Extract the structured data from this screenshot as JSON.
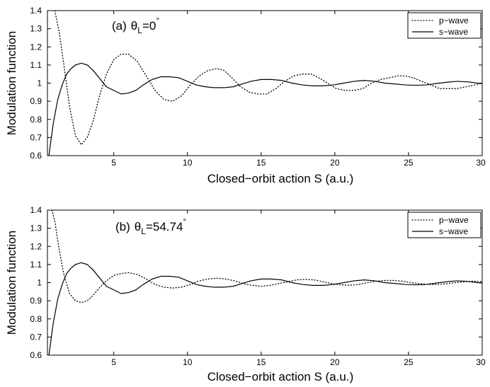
{
  "chart_data": [
    {
      "type": "line",
      "panel_label": {
        "prefix": "(a)",
        "symbol": "θ",
        "subscript": "L",
        "value": "=0",
        "superscript": "°"
      },
      "xlabel": "Closed−orbit action S (a.u.)",
      "ylabel": "Modulation function",
      "xlim": [
        0.5,
        30
      ],
      "ylim": [
        0.6,
        1.4
      ],
      "xticks": [
        5,
        10,
        15,
        20,
        25,
        30
      ],
      "xtick_labels": [
        "5",
        "10",
        "15",
        "20",
        "25",
        "30"
      ],
      "yticks": [
        0.6,
        0.7,
        0.8,
        0.9,
        1.0,
        1.1,
        1.2,
        1.3,
        1.4
      ],
      "ytick_labels": [
        "0.6",
        "0.7",
        "0.8",
        "0.9",
        "1",
        "1.1",
        "1.2",
        "1.3",
        "1.4"
      ],
      "legend_position": "top-right",
      "grid": false,
      "series": [
        {
          "name": "p−wave",
          "style": "dotted",
          "color": "#000000",
          "x": [
            1.0,
            1.3,
            1.6,
            2.0,
            2.4,
            2.8,
            3.2,
            3.6,
            4.0,
            4.5,
            5.0,
            5.5,
            6.0,
            6.6,
            7.2,
            7.8,
            8.4,
            9.0,
            9.6,
            10.2,
            10.8,
            11.4,
            12.0,
            12.5,
            13.0,
            13.6,
            14.2,
            14.8,
            15.4,
            16.0,
            16.6,
            17.2,
            17.8,
            18.4,
            18.9,
            19.5,
            20.1,
            20.7,
            21.3,
            21.9,
            22.5,
            23.1,
            23.7,
            24.3,
            24.8,
            25.3,
            25.9,
            26.5,
            27.1,
            27.7,
            28.3,
            28.9,
            29.5,
            30.0
          ],
          "y": [
            1.4,
            1.28,
            1.11,
            0.87,
            0.71,
            0.66,
            0.7,
            0.79,
            0.92,
            1.05,
            1.13,
            1.16,
            1.16,
            1.12,
            1.04,
            0.96,
            0.91,
            0.9,
            0.93,
            0.99,
            1.04,
            1.07,
            1.08,
            1.07,
            1.03,
            0.98,
            0.95,
            0.94,
            0.94,
            0.97,
            1.01,
            1.04,
            1.05,
            1.05,
            1.03,
            1.0,
            0.97,
            0.96,
            0.96,
            0.97,
            1.0,
            1.02,
            1.03,
            1.04,
            1.04,
            1.03,
            1.01,
            0.99,
            0.97,
            0.97,
            0.97,
            0.98,
            0.99,
            1.0
          ]
        },
        {
          "name": "s−wave",
          "style": "solid",
          "color": "#000000",
          "x": [
            0.6,
            0.9,
            1.2,
            1.5,
            1.8,
            2.1,
            2.4,
            2.8,
            3.2,
            3.6,
            4.0,
            4.5,
            5.0,
            5.5,
            6.0,
            6.5,
            7.0,
            7.6,
            8.2,
            8.8,
            9.4,
            10.0,
            10.6,
            11.2,
            11.8,
            12.5,
            13.1,
            13.7,
            14.3,
            15.0,
            15.7,
            16.4,
            17.1,
            17.8,
            18.5,
            19.2,
            19.9,
            20.6,
            21.3,
            22.0,
            22.7,
            23.4,
            24.1,
            24.8,
            25.5,
            26.2,
            26.9,
            27.6,
            28.3,
            29.0,
            29.7,
            30.0
          ],
          "y": [
            0.6,
            0.78,
            0.91,
            0.99,
            1.05,
            1.08,
            1.1,
            1.11,
            1.1,
            1.07,
            1.03,
            0.98,
            0.96,
            0.94,
            0.945,
            0.96,
            0.99,
            1.02,
            1.035,
            1.035,
            1.03,
            1.01,
            0.99,
            0.98,
            0.975,
            0.975,
            0.98,
            0.995,
            1.01,
            1.02,
            1.02,
            1.015,
            1.0,
            0.99,
            0.985,
            0.985,
            0.99,
            1.0,
            1.01,
            1.015,
            1.01,
            1.0,
            0.995,
            0.99,
            0.988,
            0.99,
            0.998,
            1.005,
            1.01,
            1.007,
            1.0,
            0.998
          ]
        }
      ]
    },
    {
      "type": "line",
      "panel_label": {
        "prefix": "(b)",
        "symbol": "θ",
        "subscript": "L",
        "value": "=54.74",
        "superscript": "°"
      },
      "xlabel": "Closed−orbit action S (a.u.)",
      "ylabel": "Modulation function",
      "xlim": [
        0.5,
        30
      ],
      "ylim": [
        0.6,
        1.4
      ],
      "xticks": [
        5,
        10,
        15,
        20,
        25,
        30
      ],
      "xtick_labels": [
        "5",
        "10",
        "15",
        "20",
        "25",
        "30"
      ],
      "yticks": [
        0.6,
        0.7,
        0.8,
        0.9,
        1.0,
        1.1,
        1.2,
        1.3,
        1.4
      ],
      "ytick_labels": [
        "0.6",
        "0.7",
        "0.8",
        "0.9",
        "1",
        "1.1",
        "1.2",
        "1.3",
        "1.4"
      ],
      "legend_position": "top-right",
      "grid": false,
      "series": [
        {
          "name": "p−wave",
          "style": "dotted",
          "color": "#000000",
          "x": [
            0.8,
            1.0,
            1.3,
            1.6,
            2.0,
            2.4,
            2.8,
            3.2,
            3.6,
            4.0,
            4.5,
            5.0,
            5.5,
            6.0,
            6.6,
            7.2,
            7.8,
            8.4,
            9.0,
            9.6,
            10.2,
            10.8,
            11.4,
            12.0,
            12.6,
            13.2,
            13.8,
            14.4,
            15.0,
            15.6,
            16.2,
            16.8,
            17.4,
            18.0,
            18.6,
            19.2,
            19.8,
            20.4,
            21.0,
            21.6,
            22.2,
            22.8,
            23.4,
            24.0,
            24.6,
            25.2,
            25.8,
            26.4,
            27.0,
            27.6,
            28.2,
            28.8,
            29.4,
            30.0
          ],
          "y": [
            1.4,
            1.34,
            1.18,
            1.05,
            0.94,
            0.9,
            0.89,
            0.9,
            0.93,
            0.97,
            1.01,
            1.04,
            1.05,
            1.055,
            1.045,
            1.02,
            0.99,
            0.975,
            0.97,
            0.975,
            0.99,
            1.01,
            1.02,
            1.025,
            1.02,
            1.01,
            0.995,
            0.985,
            0.98,
            0.985,
            0.995,
            1.005,
            1.015,
            1.018,
            1.015,
            1.005,
            0.995,
            0.988,
            0.986,
            0.99,
            1.0,
            1.008,
            1.012,
            1.012,
            1.008,
            1.0,
            0.994,
            0.99,
            0.99,
            0.994,
            1.0,
            1.005,
            1.008,
            1.006
          ]
        },
        {
          "name": "s−wave",
          "style": "solid",
          "color": "#000000",
          "x": [
            0.6,
            0.9,
            1.2,
            1.5,
            1.8,
            2.1,
            2.4,
            2.8,
            3.2,
            3.6,
            4.0,
            4.5,
            5.0,
            5.5,
            6.0,
            6.5,
            7.0,
            7.6,
            8.2,
            8.8,
            9.4,
            10.0,
            10.6,
            11.2,
            11.8,
            12.5,
            13.1,
            13.7,
            14.3,
            15.0,
            15.7,
            16.4,
            17.1,
            17.8,
            18.5,
            19.2,
            19.9,
            20.6,
            21.3,
            22.0,
            22.7,
            23.4,
            24.1,
            24.8,
            25.5,
            26.2,
            26.9,
            27.6,
            28.3,
            29.0,
            29.7,
            30.0
          ],
          "y": [
            0.6,
            0.78,
            0.91,
            0.99,
            1.05,
            1.08,
            1.1,
            1.11,
            1.1,
            1.07,
            1.03,
            0.98,
            0.96,
            0.94,
            0.945,
            0.96,
            0.99,
            1.02,
            1.035,
            1.035,
            1.03,
            1.01,
            0.99,
            0.98,
            0.975,
            0.975,
            0.98,
            0.995,
            1.01,
            1.02,
            1.02,
            1.015,
            1.0,
            0.99,
            0.985,
            0.985,
            0.99,
            1.0,
            1.01,
            1.015,
            1.01,
            1.0,
            0.995,
            0.99,
            0.988,
            0.99,
            0.998,
            1.005,
            1.01,
            1.007,
            1.0,
            0.998
          ]
        }
      ]
    }
  ]
}
